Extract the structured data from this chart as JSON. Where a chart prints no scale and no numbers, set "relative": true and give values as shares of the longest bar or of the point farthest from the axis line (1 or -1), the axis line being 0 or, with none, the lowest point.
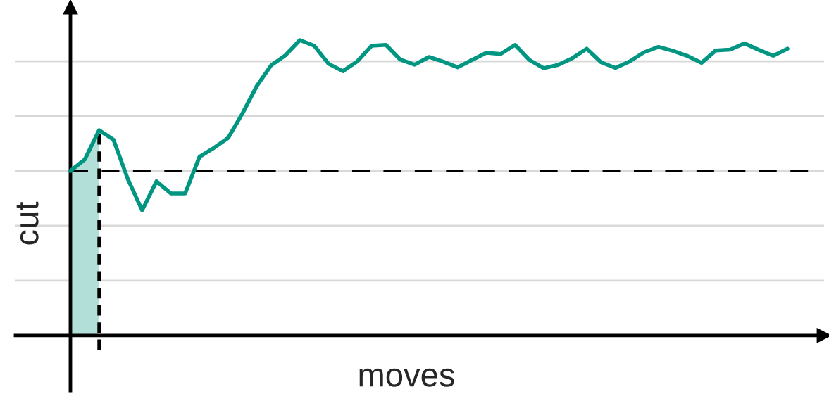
{
  "chart_data": {
    "type": "line",
    "xlabel": "moves",
    "ylabel": "cut",
    "relative": true,
    "grid": "y",
    "marker": "none",
    "line_style": "solid",
    "categories": [
      null,
      null,
      null,
      null,
      null,
      null,
      null,
      null,
      null,
      null,
      null,
      null,
      null,
      null,
      null,
      null,
      null,
      null,
      null,
      null,
      null,
      null,
      null,
      null,
      null,
      null,
      null,
      null,
      null,
      null,
      null,
      null,
      null,
      null,
      null,
      null,
      null,
      null,
      null,
      null,
      null,
      null,
      null,
      null,
      null,
      null,
      null,
      null,
      null,
      null,
      null
    ],
    "series": [
      {
        "color": "#009682",
        "values": [
          0.557,
          0.596,
          0.695,
          0.663,
          0.53,
          0.424,
          0.522,
          0.481,
          0.481,
          0.605,
          0.635,
          0.669,
          0.752,
          0.845,
          0.915,
          0.949,
          1.0,
          0.981,
          0.92,
          0.895,
          0.928,
          0.981,
          0.984,
          0.934,
          0.917,
          0.943,
          0.927,
          0.908,
          0.933,
          0.957,
          0.953,
          0.984,
          0.933,
          0.905,
          0.916,
          0.939,
          0.971,
          0.925,
          0.906,
          0.928,
          0.959,
          0.977,
          0.964,
          0.947,
          0.923,
          0.965,
          0.968,
          0.989,
          0.967,
          0.947,
          0.971
        ]
      }
    ],
    "ref_lines": [
      {
        "axis": "y",
        "value": 0.557,
        "color": "#000000",
        "line_style": "dashed"
      }
    ]
  }
}
